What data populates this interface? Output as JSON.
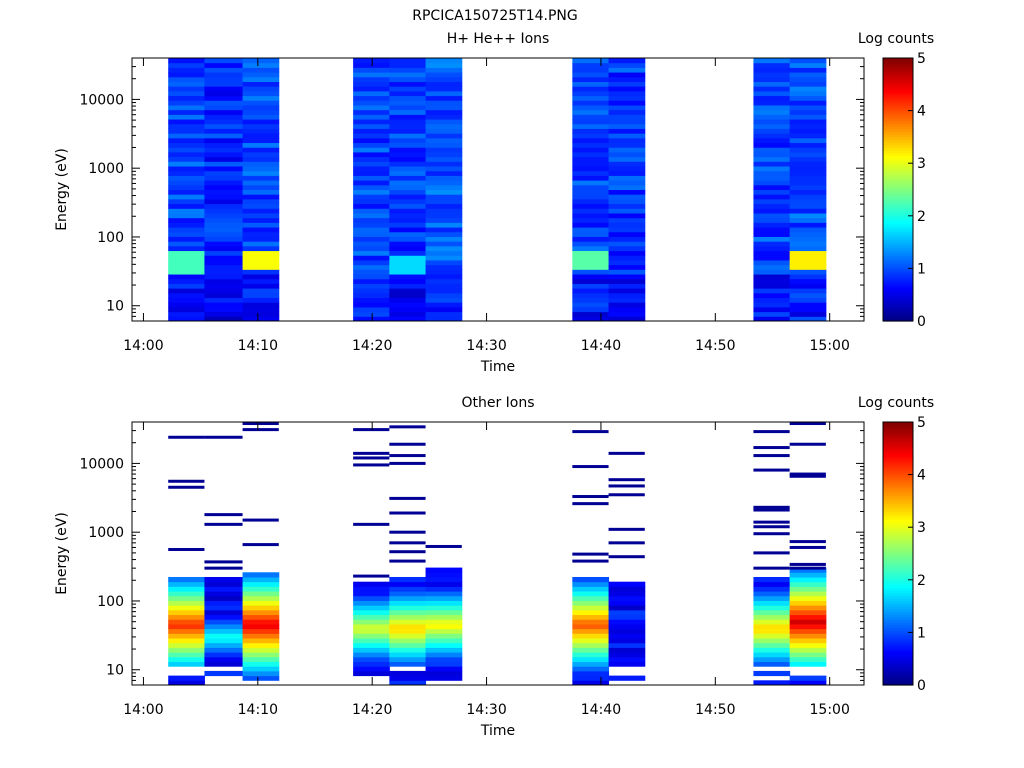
{
  "figure": {
    "title": "RPCICA150725T14.PNG"
  },
  "chart_data": [
    {
      "type": "heatmap",
      "title": "H+ He++ Ions",
      "xlabel": "Time",
      "ylabel": "Energy (eV)",
      "yscale": "log",
      "ylim": [
        6,
        40000
      ],
      "xlim": [
        "13:59",
        "15:03"
      ],
      "xticks": [
        "14:00",
        "14:10",
        "14:20",
        "14:30",
        "14:40",
        "14:50",
        "15:00"
      ],
      "yticks": [
        "10",
        "100",
        "1000",
        "10000"
      ],
      "colorbar": {
        "label": "Log counts",
        "min": 0,
        "max": 5,
        "ticks": [
          "0",
          "1",
          "2",
          "3",
          "4",
          "5"
        ],
        "colormap": "jet"
      },
      "columns": [
        {
          "start": "14:02:10",
          "end": "14:05:20",
          "peak_energy_eV": 45,
          "peak_log_counts": 2.2,
          "background_log_counts": 0.95
        },
        {
          "start": "14:05:20",
          "end": "14:08:40",
          "peak_energy_eV": 0,
          "peak_log_counts": 0,
          "background_log_counts": 0.8
        },
        {
          "start": "14:08:40",
          "end": "14:11:50",
          "peak_energy_eV": 50,
          "peak_log_counts": 3.1,
          "background_log_counts": 1.0
        },
        {
          "start": "14:18:20",
          "end": "14:21:30",
          "peak_energy_eV": 0,
          "peak_log_counts": 0,
          "background_log_counts": 0.95
        },
        {
          "start": "14:21:30",
          "end": "14:24:40",
          "peak_energy_eV": 40,
          "peak_log_counts": 1.7,
          "background_log_counts": 0.9
        },
        {
          "start": "14:24:40",
          "end": "14:27:50",
          "peak_energy_eV": 0,
          "peak_log_counts": 0,
          "background_log_counts": 1.05
        },
        {
          "start": "14:37:30",
          "end": "14:40:40",
          "peak_energy_eV": 50,
          "peak_log_counts": 2.3,
          "background_log_counts": 0.95
        },
        {
          "start": "14:40:40",
          "end": "14:43:50",
          "peak_energy_eV": 0,
          "peak_log_counts": 0,
          "background_log_counts": 0.9
        },
        {
          "start": "14:53:20",
          "end": "14:56:30",
          "peak_energy_eV": 0,
          "peak_log_counts": 0,
          "background_log_counts": 0.95
        },
        {
          "start": "14:56:30",
          "end": "14:59:40",
          "peak_energy_eV": 50,
          "peak_log_counts": 3.2,
          "background_log_counts": 1.0
        }
      ]
    },
    {
      "type": "heatmap",
      "title": "Other Ions",
      "xlabel": "Time",
      "ylabel": "Energy (eV)",
      "yscale": "log",
      "ylim": [
        6,
        40000
      ],
      "xlim": [
        "13:59",
        "15:03"
      ],
      "xticks": [
        "14:00",
        "14:10",
        "14:20",
        "14:30",
        "14:40",
        "14:50",
        "15:00"
      ],
      "yticks": [
        "10",
        "100",
        "1000",
        "10000"
      ],
      "colorbar": {
        "label": "Log counts",
        "min": 0,
        "max": 5,
        "ticks": [
          "0",
          "1",
          "2",
          "3",
          "4",
          "5"
        ],
        "colormap": "jet"
      },
      "columns": [
        {
          "start": "14:02:10",
          "end": "14:05:20",
          "dense_max_eV": 200,
          "peak_energy_eV": 45,
          "peak_log_counts": 4.2,
          "sparse_energies_eV": [
            24000,
            5500,
            4500,
            560
          ]
        },
        {
          "start": "14:05:20",
          "end": "14:08:40",
          "dense_max_eV": 200,
          "peak_energy_eV": 30,
          "peak_log_counts": 2.0,
          "sparse_energies_eV": [
            24000,
            1800,
            1300,
            370,
            300
          ]
        },
        {
          "start": "14:08:40",
          "end": "14:11:50",
          "dense_max_eV": 250,
          "peak_energy_eV": 45,
          "peak_log_counts": 4.5,
          "sparse_energies_eV": [
            38000,
            31000,
            1500,
            660
          ]
        },
        {
          "start": "14:18:20",
          "end": "14:21:30",
          "dense_max_eV": 190,
          "peak_energy_eV": 40,
          "peak_log_counts": 3.0,
          "sparse_energies_eV": [
            31000,
            14000,
            12000,
            9500,
            1300,
            230
          ]
        },
        {
          "start": "14:21:30",
          "end": "14:24:40",
          "dense_max_eV": 200,
          "peak_energy_eV": 40,
          "peak_log_counts": 3.4,
          "sparse_energies_eV": [
            34000,
            19000,
            13000,
            10000,
            3100,
            1900,
            1000,
            700,
            520,
            380
          ]
        },
        {
          "start": "14:24:40",
          "end": "14:27:50",
          "dense_max_eV": 300,
          "peak_energy_eV": 45,
          "peak_log_counts": 3.2,
          "sparse_energies_eV": [
            620
          ]
        },
        {
          "start": "14:37:30",
          "end": "14:40:40",
          "dense_max_eV": 210,
          "peak_energy_eV": 45,
          "peak_log_counts": 4.0,
          "sparse_energies_eV": [
            29000,
            9000,
            3300,
            2600,
            480,
            380
          ]
        },
        {
          "start": "14:40:40",
          "end": "14:43:50",
          "dense_max_eV": 190,
          "peak_energy_eV": 0,
          "peak_log_counts": 0,
          "sparse_energies_eV": [
            14000,
            5800,
            4700,
            3500,
            1100,
            700,
            440
          ]
        },
        {
          "start": "14:53:20",
          "end": "14:56:30",
          "dense_max_eV": 200,
          "peak_energy_eV": 40,
          "peak_log_counts": 3.4,
          "sparse_energies_eV": [
            29000,
            17000,
            13000,
            8000,
            2300,
            2100,
            1400,
            1200,
            950,
            500,
            300
          ]
        },
        {
          "start": "14:56:30",
          "end": "14:59:40",
          "dense_max_eV": 280,
          "peak_energy_eV": 50,
          "peak_log_counts": 4.6,
          "sparse_energies_eV": [
            38000,
            19000,
            7000,
            6500,
            730,
            600,
            340,
            300
          ]
        }
      ]
    }
  ]
}
